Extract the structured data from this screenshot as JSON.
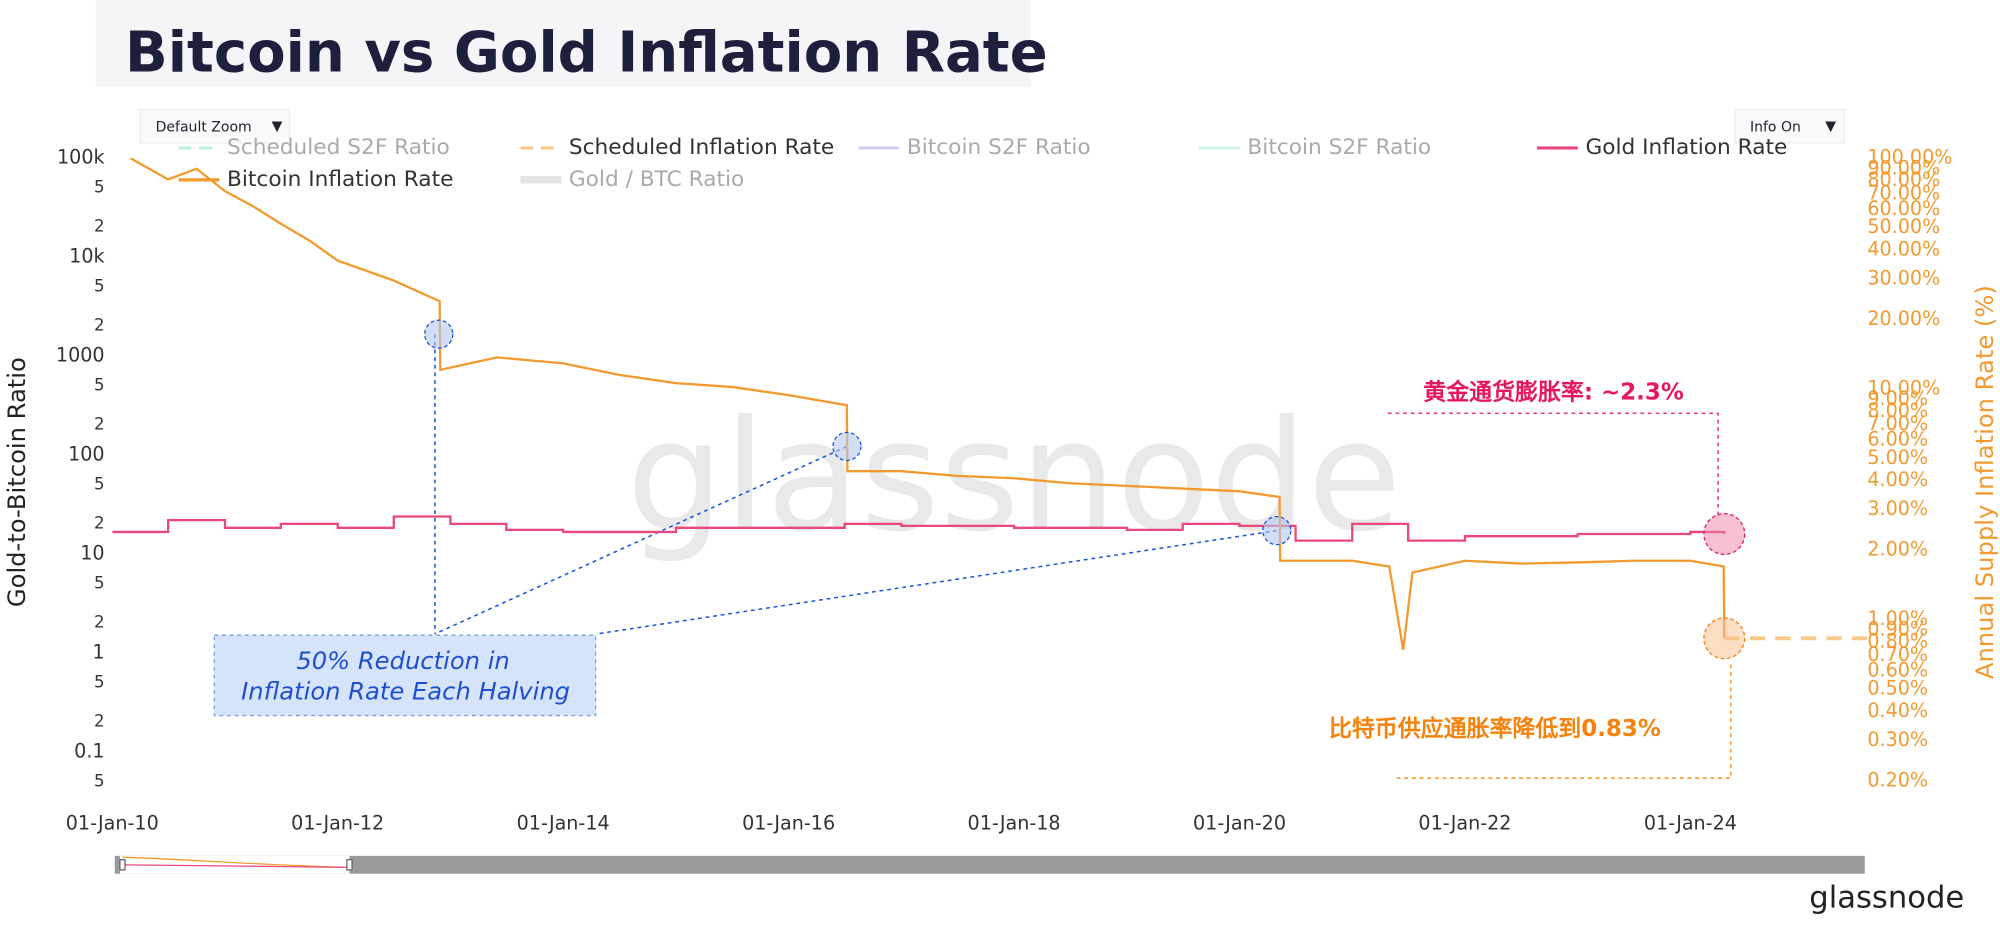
{
  "chart_data": {
    "type": "line",
    "title": "Bitcoin vs Gold Inflation Rate",
    "y_label": "Gold-to-Bitcoin Ratio",
    "y2_label": "Annual Supply Inflation Rate (%)",
    "controls": [
      "Default Zoom",
      "Info On"
    ],
    "watermark": "glassnode",
    "logo": "glassnode",
    "log_scale": true,
    "grid": false,
    "legend": "top",
    "annotations": [
      "黄金通货膨胀率: ~2.3%",
      "比特币供应通胀率降低到0.83%",
      "50% Reduction in",
      "Inflation Rate Each Halving"
    ],
    "xlim": [
      "2010-01-01",
      "2025-08-01"
    ],
    "xticks": [
      {
        "value": "2010-01-01",
        "label": "01-Jan-10"
      },
      {
        "value": "2012-01-01",
        "label": "01-Jan-12"
      },
      {
        "value": "2014-01-01",
        "label": "01-Jan-14"
      },
      {
        "value": "2016-01-01",
        "label": "01-Jan-16"
      },
      {
        "value": "2018-01-01",
        "label": "01-Jan-18"
      },
      {
        "value": "2020-01-01",
        "label": "01-Jan-20"
      },
      {
        "value": "2022-01-01",
        "label": "01-Jan-22"
      },
      {
        "value": "2024-01-01",
        "label": "01-Jan-24"
      }
    ],
    "ylim": [
      0.035,
      119000
    ],
    "yticks": [
      {
        "value": 0.05,
        "label": "5"
      },
      0.1,
      {
        "value": 0.2,
        "label": "2"
      },
      {
        "value": 0.5,
        "label": "5"
      },
      1,
      2,
      5,
      10,
      {
        "value": 20,
        "label": "2"
      },
      {
        "value": 50,
        "label": "5"
      },
      100,
      {
        "value": 200,
        "label": "2"
      },
      {
        "value": 500,
        "label": "5"
      },
      1000,
      {
        "value": 2000,
        "label": "2"
      },
      {
        "value": 5000,
        "label": "5"
      },
      {
        "value": 10000,
        "label": "10k"
      },
      {
        "value": 20000,
        "label": "2"
      },
      {
        "value": 50000,
        "label": "5"
      },
      {
        "value": 100000,
        "label": "100k"
      }
    ],
    "y2lim": [
      0.17,
      108
    ],
    "y2ticks": [
      {
        "value": 0.2,
        "label": "0.20%"
      },
      {
        "value": 0.3,
        "label": "0.30%"
      },
      {
        "value": 0.4,
        "label": "0.40%"
      },
      {
        "value": 0.5,
        "label": "0.50%"
      },
      {
        "value": 0.6,
        "label": "0.60%"
      },
      {
        "value": 0.7,
        "label": "0.70%"
      },
      {
        "value": 0.8,
        "label": "0.80%"
      },
      {
        "value": 0.9,
        "label": "0.90%"
      },
      {
        "value": 1,
        "label": "1.00%"
      },
      {
        "value": 2,
        "label": "2.00%"
      },
      {
        "value": 3,
        "label": "3.00%"
      },
      {
        "value": 4,
        "label": "4.00%"
      },
      {
        "value": 5,
        "label": "5.00%"
      },
      {
        "value": 6,
        "label": "6.00%"
      },
      {
        "value": 7,
        "label": "7.00%"
      },
      {
        "value": 8,
        "label": "8.00%"
      },
      {
        "value": 9,
        "label": "9.00%"
      },
      {
        "value": 10,
        "label": "10.00%"
      },
      {
        "value": 20,
        "label": "20.00%"
      },
      {
        "value": 30,
        "label": "30.00%"
      },
      {
        "value": 40,
        "label": "40.00%"
      },
      {
        "value": 50,
        "label": "50.00%"
      },
      {
        "value": 60,
        "label": "60.00%"
      },
      {
        "value": 70,
        "label": "70.00%"
      },
      {
        "value": 80,
        "label": "80.00%"
      },
      {
        "value": 90,
        "label": "90.00%"
      },
      {
        "value": 100,
        "label": "100.00%"
      }
    ],
    "series": [
      {
        "name": "Scheduled S2F Ratio",
        "color": "#a8e6d8",
        "dash": true,
        "hidden": true,
        "x": [],
        "values": []
      },
      {
        "name": "Scheduled Inflation Rate",
        "color": "#f9c98a",
        "dash": true,
        "hidden": false,
        "axis": "y2",
        "x": [
          "2024-04-20",
          "2025-08-01"
        ],
        "values": [
          0.83,
          0.83
        ]
      },
      {
        "name": "Bitcoin S2F Ratio",
        "color": "#c3b8f5",
        "dash": false,
        "hidden": true,
        "x": [],
        "values": []
      },
      {
        "name": "Bitcoin S2F Ratio",
        "color": "#bfeedd",
        "dash": false,
        "hidden": true,
        "x": [],
        "values": []
      },
      {
        "name": "Gold Inflation Rate",
        "color": "#e8487a",
        "dash": false,
        "hidden": false,
        "axis": "y2",
        "line_shape": "hv",
        "x": [
          "2010-01-01",
          "2010-07-01",
          "2011-01-01",
          "2011-07-01",
          "2012-01-01",
          "2012-07-01",
          "2013-01-01",
          "2013-07-01",
          "2014-01-01",
          "2015-01-01",
          "2016-01-01",
          "2016-07-01",
          "2017-01-01",
          "2018-01-01",
          "2019-01-01",
          "2019-07-01",
          "2020-01-01",
          "2020-07-01",
          "2021-01-01",
          "2021-07-01",
          "2022-01-01",
          "2023-01-01",
          "2024-01-01",
          "2024-04-20"
        ],
        "values": [
          2.4,
          2.7,
          2.5,
          2.6,
          2.5,
          2.8,
          2.6,
          2.45,
          2.4,
          2.5,
          2.5,
          2.6,
          2.55,
          2.5,
          2.45,
          2.6,
          2.55,
          2.2,
          2.6,
          2.2,
          2.3,
          2.35,
          2.4,
          2.35
        ]
      },
      {
        "name": "Bitcoin Inflation Rate",
        "color": "#f29a2e",
        "dash": false,
        "hidden": false,
        "axis": "y2",
        "x": [
          "2010-03-01",
          "2010-07-01",
          "2010-10-01",
          "2011-01-01",
          "2011-04-01",
          "2011-07-01",
          "2011-10-01",
          "2012-01-01",
          "2012-07-01",
          "2012-11-27",
          "2012-11-29",
          "2013-06-01",
          "2014-01-01",
          "2014-07-01",
          "2015-01-01",
          "2015-07-01",
          "2016-01-01",
          "2016-07-08",
          "2016-07-10",
          "2017-01-01",
          "2017-07-01",
          "2018-01-01",
          "2018-07-01",
          "2019-01-01",
          "2019-07-01",
          "2020-01-01",
          "2020-05-10",
          "2020-05-12",
          "2021-01-01",
          "2021-05-01",
          "2021-06-15",
          "2021-07-15",
          "2022-01-01",
          "2022-07-01",
          "2023-01-01",
          "2023-07-01",
          "2024-01-01",
          "2024-04-18",
          "2024-04-20"
        ],
        "values": [
          100,
          81,
          90,
          72,
          62,
          52,
          44,
          36,
          29.5,
          24,
          12.1,
          13.7,
          12.9,
          11.5,
          10.6,
          10.2,
          9.4,
          8.5,
          4.4,
          4.4,
          4.2,
          4.1,
          3.9,
          3.8,
          3.7,
          3.6,
          3.4,
          1.8,
          1.8,
          1.7,
          0.74,
          1.6,
          1.8,
          1.75,
          1.77,
          1.8,
          1.8,
          1.7,
          0.83
        ]
      },
      {
        "name": "Gold / BTC Ratio",
        "color": "#d9d9d9",
        "dash": false,
        "hidden": true,
        "x": [],
        "values": []
      }
    ]
  }
}
